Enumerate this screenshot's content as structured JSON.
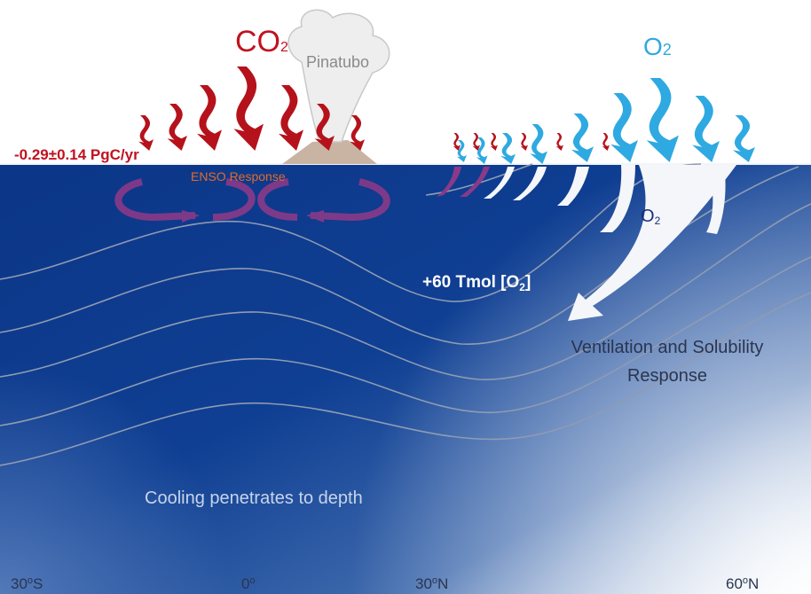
{
  "co2_label": {
    "base": "CO",
    "sub": "2"
  },
  "volcano_label": "Pinatubo",
  "o2_atmosphere_label": {
    "base": "O",
    "sub": "2"
  },
  "carbon_flux": "-0.29±0.14 PgC/yr",
  "enso_label": "ENSO Response",
  "o2_ocean_label": {
    "base": "O",
    "sub": "2"
  },
  "oxygen_flux": {
    "before": "+60 Tmol [O",
    "sub": "2",
    "after": "]"
  },
  "ventilation_label": [
    "Ventilation and Solubility",
    "Response"
  ],
  "cooling_label": "Cooling penetrates to depth",
  "x_axis": [
    {
      "value": "30",
      "degree": "o",
      "hemisphere": "S"
    },
    {
      "value": "0",
      "degree": "o"
    },
    {
      "value": "30",
      "degree": "o",
      "hemisphere": "N"
    },
    {
      "value": "60",
      "degree": "o",
      "hemisphere": "N"
    }
  ]
}
